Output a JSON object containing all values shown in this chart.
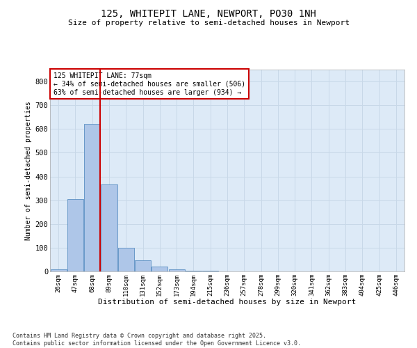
{
  "title_line1": "125, WHITEPIT LANE, NEWPORT, PO30 1NH",
  "title_line2": "Size of property relative to semi-detached houses in Newport",
  "xlabel": "Distribution of semi-detached houses by size in Newport",
  "ylabel": "Number of semi-detached properties",
  "footnote": "Contains HM Land Registry data © Crown copyright and database right 2025.\nContains public sector information licensed under the Open Government Licence v3.0.",
  "bar_color": "#aec6e8",
  "bar_edge_color": "#5a8fc2",
  "grid_color": "#c8d8e8",
  "background_color": "#ddeaf7",
  "annotation_box_color": "#cc0000",
  "property_line_color": "#cc0000",
  "annotation_text": "125 WHITEPIT LANE: 77sqm\n← 34% of semi-detached houses are smaller (506)\n63% of semi-detached houses are larger (934) →",
  "property_bin_index": 2,
  "bin_labels": [
    "26sqm",
    "47sqm",
    "68sqm",
    "89sqm",
    "110sqm",
    "131sqm",
    "152sqm",
    "173sqm",
    "194sqm",
    "215sqm",
    "236sqm",
    "257sqm",
    "278sqm",
    "299sqm",
    "320sqm",
    "341sqm",
    "362sqm",
    "383sqm",
    "404sqm",
    "425sqm",
    "446sqm"
  ],
  "bar_heights": [
    10,
    305,
    620,
    365,
    100,
    48,
    20,
    8,
    4,
    2,
    0,
    0,
    0,
    0,
    0,
    0,
    0,
    0,
    0,
    0,
    0
  ],
  "ylim": [
    0,
    850
  ],
  "yticks": [
    0,
    100,
    200,
    300,
    400,
    500,
    600,
    700,
    800
  ]
}
